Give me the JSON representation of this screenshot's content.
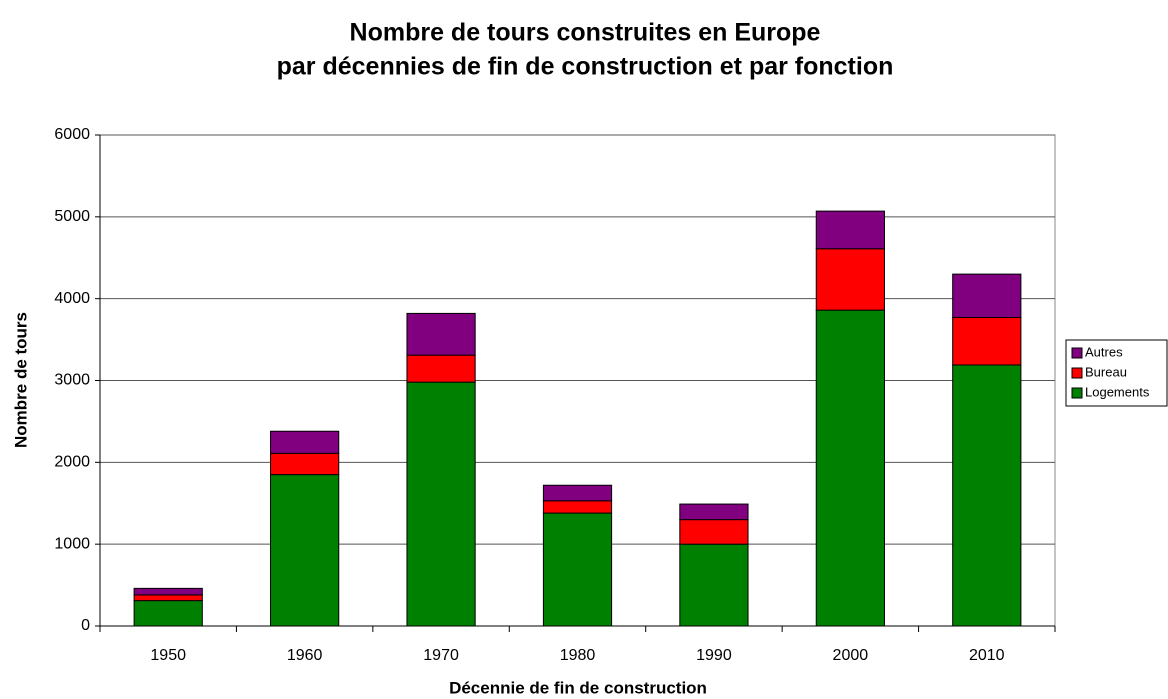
{
  "chart_data": {
    "type": "stacked-bar",
    "title": [
      "Nombre de tours construites en Europe",
      "par décennies de fin de construction et par fonction"
    ],
    "x_label": "Décennie de fin de construction",
    "y_label": "Nombre de tours",
    "categories": [
      "1950",
      "1960",
      "1970",
      "1980",
      "1990",
      "2000",
      "2010"
    ],
    "series": [
      {
        "name": "Logements",
        "color": "#008000",
        "values": [
          310,
          1850,
          2980,
          1380,
          1000,
          3860,
          3190
        ]
      },
      {
        "name": "Bureau",
        "color": "#ff0000",
        "values": [
          70,
          260,
          330,
          150,
          300,
          750,
          580
        ]
      },
      {
        "name": "Autres",
        "color": "#800080",
        "values": [
          80,
          270,
          510,
          190,
          190,
          460,
          530
        ]
      }
    ],
    "ylim": [
      0,
      6000
    ],
    "yticks": [
      0,
      1000,
      2000,
      3000,
      4000,
      5000,
      6000
    ],
    "grid": true,
    "legend": "right"
  }
}
